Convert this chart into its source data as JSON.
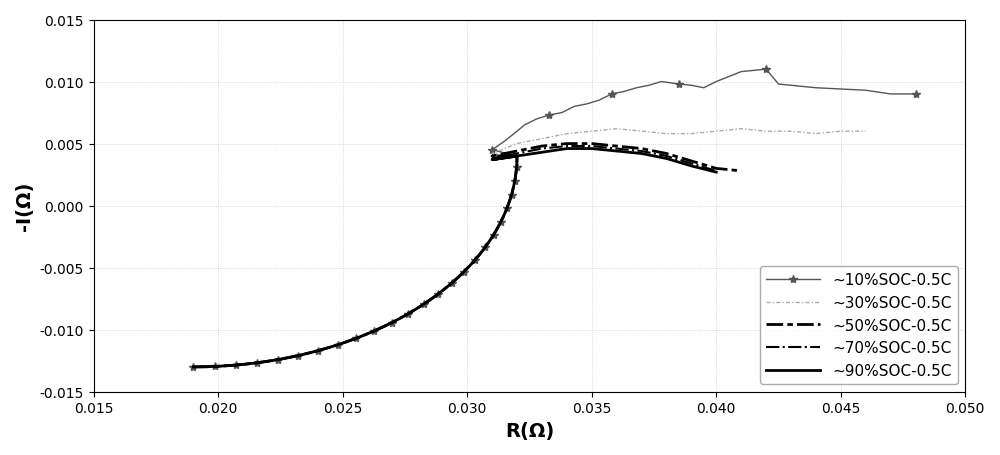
{
  "title": "",
  "xlabel": "R(Ω)",
  "ylabel": "-I(Ω)",
  "xlim": [
    0.015,
    0.05
  ],
  "ylim": [
    -0.015,
    0.015
  ],
  "xticks": [
    0.015,
    0.02,
    0.025,
    0.03,
    0.035,
    0.04,
    0.045,
    0.05
  ],
  "yticks": [
    -0.015,
    -0.01,
    -0.005,
    0,
    0.005,
    0.01,
    0.015
  ],
  "grid": true,
  "legend_labels": [
    "~10%SOC-0.5C",
    "~30%SOC-0.5C",
    "~50%SOC-0.5C",
    "~70%SOC-0.5C",
    "~90%SOC-0.5C"
  ],
  "legend_loc": "lower right",
  "figsize": [
    10.0,
    4.56
  ],
  "dpi": 100,
  "background_color": "#ffffff"
}
